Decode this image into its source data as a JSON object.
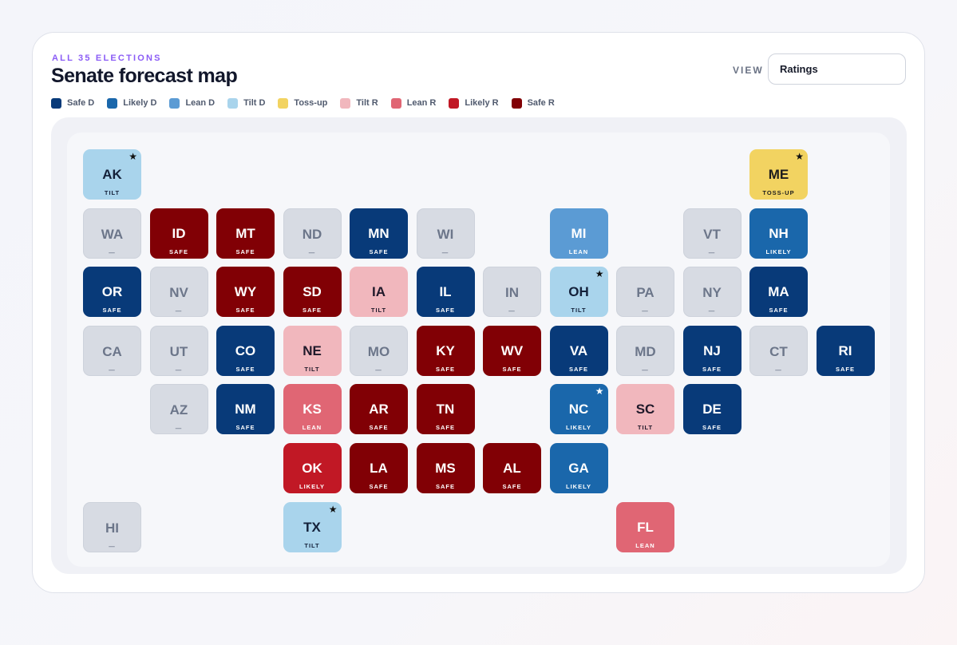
{
  "header": {
    "eyebrow": "ALL 35 ELECTIONS",
    "title": "Senate forecast map",
    "view_label": "VIEW",
    "view_value": "Ratings"
  },
  "legend": [
    {
      "label": "Safe D",
      "color": "#083a79"
    },
    {
      "label": "Likely D",
      "color": "#1a67ab"
    },
    {
      "label": "Lean D",
      "color": "#5b9bd4"
    },
    {
      "label": "Tilt D",
      "color": "#a9d4ec"
    },
    {
      "label": "Toss-up",
      "color": "#f2d361"
    },
    {
      "label": "Tilt R",
      "color": "#f1b7bd"
    },
    {
      "label": "Lean R",
      "color": "#e06674"
    },
    {
      "label": "Likely R",
      "color": "#c11825"
    },
    {
      "label": "Safe R",
      "color": "#810005"
    }
  ],
  "states": [
    {
      "abbr": "AK",
      "tag": "TILT",
      "rating": "tiltD",
      "row": 0,
      "col": 0,
      "star": true
    },
    {
      "abbr": "ME",
      "tag": "TOSS-UP",
      "rating": "toss",
      "row": 0,
      "col": 10,
      "star": true
    },
    {
      "abbr": "WA",
      "tag": "—",
      "rating": "none",
      "row": 1,
      "col": 0,
      "star": false
    },
    {
      "abbr": "ID",
      "tag": "SAFE",
      "rating": "safeR",
      "row": 1,
      "col": 1,
      "star": false
    },
    {
      "abbr": "MT",
      "tag": "SAFE",
      "rating": "safeR",
      "row": 1,
      "col": 2,
      "star": false
    },
    {
      "abbr": "ND",
      "tag": "—",
      "rating": "none",
      "row": 1,
      "col": 3,
      "star": false
    },
    {
      "abbr": "MN",
      "tag": "SAFE",
      "rating": "safeD",
      "row": 1,
      "col": 4,
      "star": false
    },
    {
      "abbr": "WI",
      "tag": "—",
      "rating": "none",
      "row": 1,
      "col": 5,
      "star": false
    },
    {
      "abbr": "MI",
      "tag": "LEAN",
      "rating": "leanD",
      "row": 1,
      "col": 7,
      "star": false
    },
    {
      "abbr": "VT",
      "tag": "—",
      "rating": "none",
      "row": 1,
      "col": 9,
      "star": false
    },
    {
      "abbr": "NH",
      "tag": "LIKELY",
      "rating": "likelyD",
      "row": 1,
      "col": 10,
      "star": false
    },
    {
      "abbr": "OR",
      "tag": "SAFE",
      "rating": "safeD",
      "row": 2,
      "col": 0,
      "star": false
    },
    {
      "abbr": "NV",
      "tag": "—",
      "rating": "none",
      "row": 2,
      "col": 1,
      "star": false
    },
    {
      "abbr": "WY",
      "tag": "SAFE",
      "rating": "safeR",
      "row": 2,
      "col": 2,
      "star": false
    },
    {
      "abbr": "SD",
      "tag": "SAFE",
      "rating": "safeR",
      "row": 2,
      "col": 3,
      "star": false
    },
    {
      "abbr": "IA",
      "tag": "TILT",
      "rating": "tiltR",
      "row": 2,
      "col": 4,
      "star": false
    },
    {
      "abbr": "IL",
      "tag": "SAFE",
      "rating": "safeD",
      "row": 2,
      "col": 5,
      "star": false
    },
    {
      "abbr": "IN",
      "tag": "—",
      "rating": "none",
      "row": 2,
      "col": 6,
      "star": false
    },
    {
      "abbr": "OH",
      "tag": "TILT",
      "rating": "tiltD",
      "row": 2,
      "col": 7,
      "star": true
    },
    {
      "abbr": "PA",
      "tag": "—",
      "rating": "none",
      "row": 2,
      "col": 8,
      "star": false
    },
    {
      "abbr": "NY",
      "tag": "—",
      "rating": "none",
      "row": 2,
      "col": 9,
      "star": false
    },
    {
      "abbr": "MA",
      "tag": "SAFE",
      "rating": "safeD",
      "row": 2,
      "col": 10,
      "star": false
    },
    {
      "abbr": "CA",
      "tag": "—",
      "rating": "none",
      "row": 3,
      "col": 0,
      "star": false
    },
    {
      "abbr": "UT",
      "tag": "—",
      "rating": "none",
      "row": 3,
      "col": 1,
      "star": false
    },
    {
      "abbr": "CO",
      "tag": "SAFE",
      "rating": "safeD",
      "row": 3,
      "col": 2,
      "star": false
    },
    {
      "abbr": "NE",
      "tag": "TILT",
      "rating": "tiltR",
      "row": 3,
      "col": 3,
      "star": false
    },
    {
      "abbr": "MO",
      "tag": "—",
      "rating": "none",
      "row": 3,
      "col": 4,
      "star": false
    },
    {
      "abbr": "KY",
      "tag": "SAFE",
      "rating": "safeR",
      "row": 3,
      "col": 5,
      "star": false
    },
    {
      "abbr": "WV",
      "tag": "SAFE",
      "rating": "safeR",
      "row": 3,
      "col": 6,
      "star": false
    },
    {
      "abbr": "VA",
      "tag": "SAFE",
      "rating": "safeD",
      "row": 3,
      "col": 7,
      "star": false
    },
    {
      "abbr": "MD",
      "tag": "—",
      "rating": "none",
      "row": 3,
      "col": 8,
      "star": false
    },
    {
      "abbr": "NJ",
      "tag": "SAFE",
      "rating": "safeD",
      "row": 3,
      "col": 9,
      "star": false
    },
    {
      "abbr": "CT",
      "tag": "—",
      "rating": "none",
      "row": 3,
      "col": 10,
      "star": false
    },
    {
      "abbr": "RI",
      "tag": "SAFE",
      "rating": "safeD",
      "row": 3,
      "col": 11,
      "star": false
    },
    {
      "abbr": "AZ",
      "tag": "—",
      "rating": "none",
      "row": 4,
      "col": 1,
      "star": false
    },
    {
      "abbr": "NM",
      "tag": "SAFE",
      "rating": "safeD",
      "row": 4,
      "col": 2,
      "star": false
    },
    {
      "abbr": "KS",
      "tag": "LEAN",
      "rating": "leanR",
      "row": 4,
      "col": 3,
      "star": false
    },
    {
      "abbr": "AR",
      "tag": "SAFE",
      "rating": "safeR",
      "row": 4,
      "col": 4,
      "star": false
    },
    {
      "abbr": "TN",
      "tag": "SAFE",
      "rating": "safeR",
      "row": 4,
      "col": 5,
      "star": false
    },
    {
      "abbr": "NC",
      "tag": "LIKELY",
      "rating": "likelyD",
      "row": 4,
      "col": 7,
      "star": true
    },
    {
      "abbr": "SC",
      "tag": "TILT",
      "rating": "tiltR",
      "row": 4,
      "col": 8,
      "star": false
    },
    {
      "abbr": "DE",
      "tag": "SAFE",
      "rating": "safeD",
      "row": 4,
      "col": 9,
      "star": false
    },
    {
      "abbr": "OK",
      "tag": "LIKELY",
      "rating": "likelyR",
      "row": 5,
      "col": 3,
      "star": false
    },
    {
      "abbr": "LA",
      "tag": "SAFE",
      "rating": "safeR",
      "row": 5,
      "col": 4,
      "star": false
    },
    {
      "abbr": "MS",
      "tag": "SAFE",
      "rating": "safeR",
      "row": 5,
      "col": 5,
      "star": false
    },
    {
      "abbr": "AL",
      "tag": "SAFE",
      "rating": "safeR",
      "row": 5,
      "col": 6,
      "star": false
    },
    {
      "abbr": "GA",
      "tag": "LIKELY",
      "rating": "likelyD",
      "row": 5,
      "col": 7,
      "star": false
    },
    {
      "abbr": "HI",
      "tag": "—",
      "rating": "none",
      "row": 6,
      "col": 0,
      "star": false
    },
    {
      "abbr": "TX",
      "tag": "TILT",
      "rating": "tiltD",
      "row": 6,
      "col": 3,
      "star": true
    },
    {
      "abbr": "FL",
      "tag": "LEAN",
      "rating": "leanR",
      "row": 6,
      "col": 8,
      "star": false
    }
  ]
}
